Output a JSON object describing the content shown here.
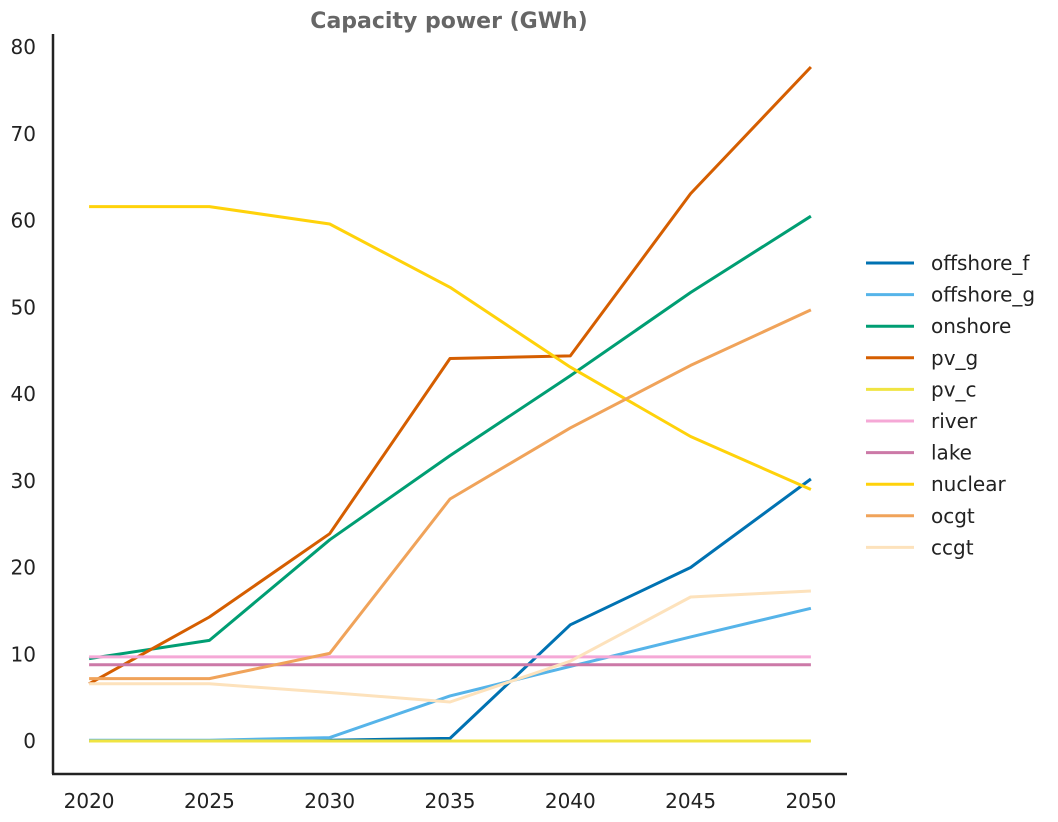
{
  "chart_data": {
    "type": "line",
    "title": "Capacity power (GWh)",
    "xlabel": "",
    "ylabel": "",
    "x": [
      2020,
      2025,
      2030,
      2035,
      2040,
      2045,
      2050
    ],
    "x_ticks": [
      "2020",
      "2025",
      "2030",
      "2035",
      "2040",
      "2045",
      "2050"
    ],
    "y_ticks": [
      "0",
      "10",
      "20",
      "30",
      "40",
      "50",
      "60",
      "70",
      "80"
    ],
    "xlim": [
      2018.5,
      2051.5
    ],
    "ylim": [
      -3.8,
      81.5
    ],
    "grid": false,
    "legend_position": "right",
    "series": [
      {
        "name": "offshore_f",
        "color": "#0072b2",
        "values": [
          0.0,
          0.0,
          0.1,
          0.3,
          13.4,
          20.0,
          30.2
        ]
      },
      {
        "name": "offshore_g",
        "color": "#56b4e9",
        "values": [
          0.1,
          0.1,
          0.4,
          5.2,
          8.6,
          12.0,
          15.3
        ]
      },
      {
        "name": "onshore",
        "color": "#009e73",
        "values": [
          9.5,
          11.6,
          23.2,
          32.9,
          42.1,
          51.7,
          60.5
        ]
      },
      {
        "name": "pv_g",
        "color": "#d55e00",
        "values": [
          6.6,
          14.3,
          23.9,
          44.1,
          44.4,
          63.1,
          77.7
        ]
      },
      {
        "name": "pv_c",
        "color": "#f0e442",
        "values": [
          0.0,
          0.0,
          0.0,
          0.0,
          0.0,
          0.0,
          0.0
        ]
      },
      {
        "name": "river",
        "color": "#f5a8d6",
        "values": [
          9.7,
          9.7,
          9.7,
          9.7,
          9.7,
          9.7,
          9.7
        ]
      },
      {
        "name": "lake",
        "color": "#cc79a7",
        "values": [
          8.8,
          8.8,
          8.8,
          8.8,
          8.8,
          8.8,
          8.8
        ]
      },
      {
        "name": "nuclear",
        "color": "#ffd20a",
        "values": [
          61.6,
          61.6,
          59.6,
          52.3,
          43.1,
          35.1,
          29.0
        ]
      },
      {
        "name": "ocgt",
        "color": "#f0a35a",
        "values": [
          7.2,
          7.2,
          10.1,
          27.9,
          36.1,
          43.3,
          49.7
        ]
      },
      {
        "name": "ccgt",
        "color": "#fde2bc",
        "values": [
          6.6,
          6.6,
          5.6,
          4.5,
          9.2,
          16.6,
          17.3
        ]
      }
    ]
  }
}
